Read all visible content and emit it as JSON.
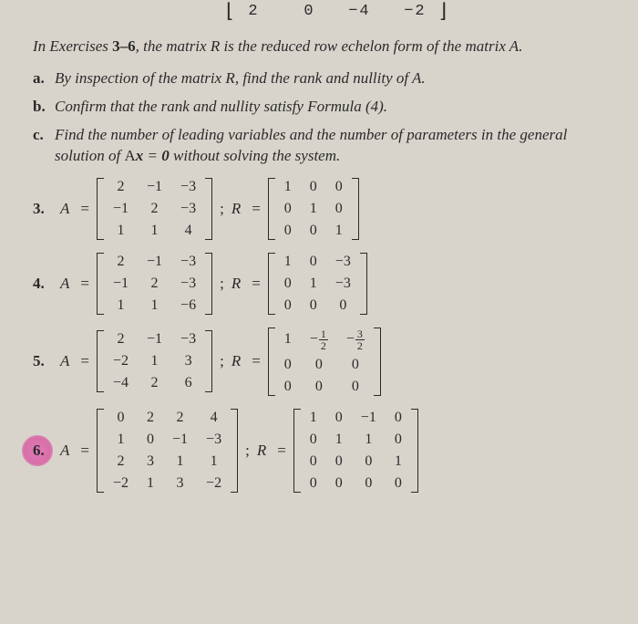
{
  "page_bg": "#d8d4cc",
  "text_color": "#2a2a2a",
  "highlight_color": "#e07bb8",
  "fonts": {
    "body": "Georgia/serif",
    "matrix_top": "monospace",
    "base_size_pt": 13
  },
  "top_row": {
    "values": [
      "2",
      "0",
      "−4",
      "−2"
    ],
    "has_right_bracket": true,
    "has_left_bracket_stub": true
  },
  "instructions_prefix": "In Exercises ",
  "instructions_range": "3–6",
  "instructions_rest": ", the matrix R is the reduced row echelon form of the matrix A.",
  "parts": {
    "a": {
      "label": "a.",
      "text": "By inspection of the matrix R, find the rank and nullity of A."
    },
    "b": {
      "label": "b.",
      "text": "Confirm that the rank and nullity satisfy Formula (4)."
    },
    "c": {
      "label": "c.",
      "text": "Find the number of leading variables and the number of parameters in the general solution of Ax = 0 without solving the system."
    }
  },
  "symbols": {
    "A": "A",
    "R": "R",
    "eq": "=",
    "semi": ";"
  },
  "problems": [
    {
      "num": "3.",
      "A": [
        [
          "2",
          "−1",
          "−3"
        ],
        [
          "−1",
          "2",
          "−3"
        ],
        [
          "1",
          "1",
          "4"
        ]
      ],
      "R": [
        [
          "1",
          "0",
          "0"
        ],
        [
          "0",
          "1",
          "0"
        ],
        [
          "0",
          "0",
          "1"
        ]
      ]
    },
    {
      "num": "4.",
      "A": [
        [
          "2",
          "−1",
          "−3"
        ],
        [
          "−1",
          "2",
          "−3"
        ],
        [
          "1",
          "1",
          "−6"
        ]
      ],
      "R": [
        [
          "1",
          "0",
          "−3"
        ],
        [
          "0",
          "1",
          "−3"
        ],
        [
          "0",
          "0",
          "0"
        ]
      ]
    },
    {
      "num": "5.",
      "A": [
        [
          "2",
          "−1",
          "−3"
        ],
        [
          "−2",
          "1",
          "3"
        ],
        [
          "−4",
          "2",
          "6"
        ]
      ],
      "R": [
        [
          "1",
          "−1/2",
          "−3/2"
        ],
        [
          "0",
          "0",
          "0"
        ],
        [
          "0",
          "0",
          "0"
        ]
      ]
    },
    {
      "num": "6.",
      "highlighted": true,
      "A": [
        [
          "0",
          "2",
          "2",
          "4"
        ],
        [
          "1",
          "0",
          "−1",
          "−3"
        ],
        [
          "2",
          "3",
          "1",
          "1"
        ],
        [
          "−2",
          "1",
          "3",
          "−2"
        ]
      ],
      "R": [
        [
          "1",
          "0",
          "−1",
          "0"
        ],
        [
          "0",
          "1",
          "1",
          "0"
        ],
        [
          "0",
          "0",
          "0",
          "1"
        ],
        [
          "0",
          "0",
          "0",
          "0"
        ]
      ]
    }
  ]
}
